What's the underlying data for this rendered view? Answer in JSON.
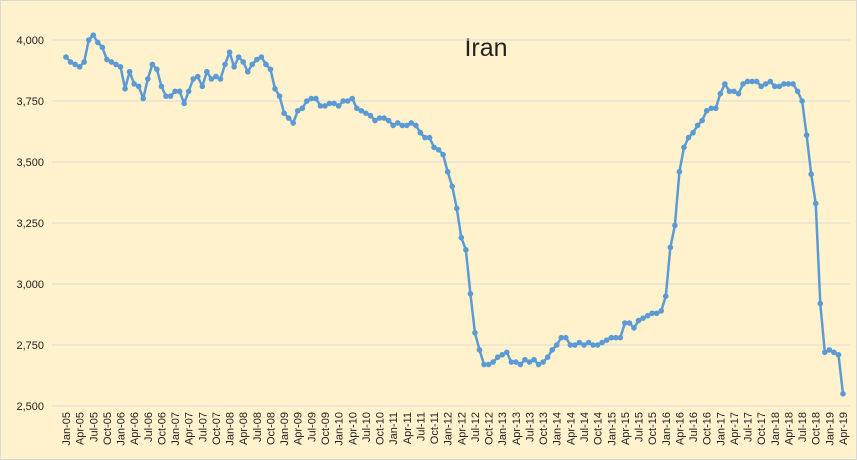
{
  "chart_data": {
    "type": "line",
    "title": "Iran",
    "categories": [
      "Jan-05",
      null,
      null,
      "Apr-05",
      null,
      null,
      "Jul-05",
      null,
      null,
      "Oct-05",
      null,
      null,
      "Jan-06",
      null,
      null,
      "Apr-06",
      null,
      null,
      "Jul-06",
      null,
      null,
      "Oct-06",
      null,
      null,
      "Jan-07",
      null,
      null,
      "Apr-07",
      null,
      null,
      "Jul-07",
      null,
      null,
      "Oct-07",
      null,
      null,
      "Jan-08",
      null,
      null,
      "Apr-08",
      null,
      null,
      "Jul-08",
      null,
      null,
      "Oct-08",
      null,
      null,
      "Jan-09",
      null,
      null,
      "Apr-09",
      null,
      null,
      "Jul-09",
      null,
      null,
      "Oct-09",
      null,
      null,
      "Jan-10",
      null,
      null,
      "Apr-10",
      null,
      null,
      "Jul-10",
      null,
      null,
      "Oct-10",
      null,
      null,
      "Jan-11",
      null,
      null,
      "Apr-11",
      null,
      null,
      "Jul-11",
      null,
      null,
      "Oct-11",
      null,
      null,
      "Jan-12",
      null,
      null,
      "Apr-12",
      null,
      null,
      "Jul-12",
      null,
      null,
      "Oct-12",
      null,
      null,
      "Jan-13",
      null,
      null,
      "Apr-13",
      null,
      null,
      "Jul-13",
      null,
      null,
      "Oct-13",
      null,
      null,
      "Jan-14",
      null,
      null,
      "Apr-14",
      null,
      null,
      "Jul-14",
      null,
      null,
      "Oct-14",
      null,
      null,
      "Jan-15",
      null,
      null,
      "Apr-15",
      null,
      null,
      "Jul-15",
      null,
      null,
      "Oct-15",
      null,
      null,
      "Jan-16",
      null,
      null,
      "Apr-16",
      null,
      null,
      "Jul-16",
      null,
      null,
      "Oct-16",
      null,
      null,
      "Jan-17",
      null,
      null,
      "Apr-17",
      null,
      null,
      "Jul-17",
      null,
      null,
      "Oct-17",
      null,
      null,
      "Jan-18",
      null,
      null,
      "Apr-18",
      null,
      null,
      "Jul-18",
      null,
      null,
      "Oct-18",
      null,
      null,
      "Jan-19",
      null,
      null,
      "Apr-19"
    ],
    "series": [
      {
        "color": "#5b9bd5",
        "values": [
          3930,
          3910,
          3900,
          3890,
          3910,
          4000,
          4020,
          3990,
          3970,
          3920,
          3910,
          3900,
          3890,
          3800,
          3870,
          3820,
          3810,
          3760,
          3840,
          3900,
          3880,
          3810,
          3770,
          3770,
          3790,
          3790,
          3740,
          3790,
          3840,
          3850,
          3810,
          3870,
          3840,
          3850,
          3840,
          3900,
          3950,
          3890,
          3930,
          3910,
          3870,
          3900,
          3920,
          3930,
          3900,
          3880,
          3800,
          3770,
          3700,
          3680,
          3660,
          3710,
          3720,
          3750,
          3760,
          3760,
          3730,
          3730,
          3740,
          3740,
          3730,
          3750,
          3750,
          3760,
          3720,
          3710,
          3700,
          3690,
          3670,
          3680,
          3680,
          3670,
          3650,
          3660,
          3650,
          3650,
          3660,
          3650,
          3620,
          3600,
          3600,
          3560,
          3550,
          3530,
          3460,
          3400,
          3310,
          3190,
          3140,
          2960,
          2800,
          2730,
          2670,
          2670,
          2680,
          2700,
          2710,
          2720,
          2680,
          2680,
          2670,
          2690,
          2680,
          2690,
          2670,
          2680,
          2700,
          2730,
          2750,
          2780,
          2780,
          2750,
          2750,
          2760,
          2750,
          2760,
          2750,
          2750,
          2760,
          2770,
          2780,
          2780,
          2780,
          2840,
          2840,
          2820,
          2850,
          2860,
          2870,
          2880,
          2880,
          2890,
          2950,
          3150,
          3240,
          3460,
          3560,
          3600,
          3620,
          3650,
          3670,
          3710,
          3720,
          3720,
          3780,
          3820,
          3790,
          3790,
          3780,
          3820,
          3830,
          3830,
          3830,
          3810,
          3820,
          3830,
          3810,
          3810,
          3820,
          3820,
          3820,
          3790,
          3750,
          3610,
          3450,
          3330,
          2920,
          2720,
          2730,
          2720,
          2710,
          2550
        ]
      }
    ],
    "ylim": [
      2500,
      4000
    ],
    "yticks": [
      {
        "value": 2500,
        "label": "2,500"
      },
      {
        "value": 2750,
        "label": "2,750"
      },
      {
        "value": 3000,
        "label": "3,000"
      },
      {
        "value": 3250,
        "label": "3,250"
      },
      {
        "value": 3500,
        "label": "3,500"
      },
      {
        "value": 3750,
        "label": "3,750"
      },
      {
        "value": 4000,
        "label": "4,000"
      }
    ],
    "grid": true,
    "background": "#fff2cc"
  }
}
